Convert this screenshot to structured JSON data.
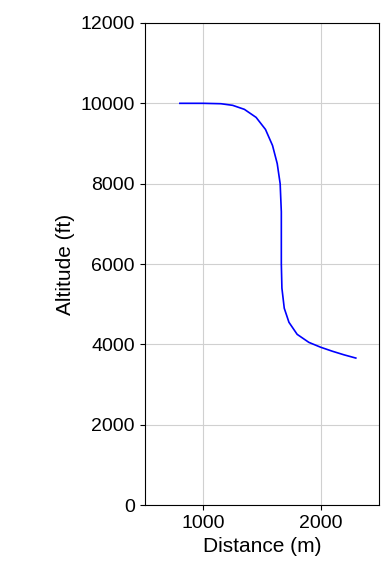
{
  "chart_data": {
    "type": "line",
    "x_label": "Distance (m)",
    "y_label": "Altitude (ft)",
    "x": [
      800,
      1000,
      1150,
      1250,
      1350,
      1450,
      1530,
      1590,
      1630,
      1655,
      1665,
      1665,
      1665,
      1670,
      1690,
      1730,
      1800,
      1900,
      2000,
      2100,
      2200,
      2300
    ],
    "series": [
      {
        "name": null,
        "color": "#0000ff",
        "values": [
          10000,
          10000,
          9990,
          9950,
          9850,
          9650,
          9350,
          8950,
          8500,
          8000,
          7300,
          6600,
          6000,
          5400,
          4900,
          4550,
          4250,
          4050,
          3930,
          3830,
          3740,
          3660
        ]
      }
    ],
    "xlim": [
      500,
      2500
    ],
    "xticks": [
      1000,
      2000
    ],
    "ylim": [
      0,
      12000
    ],
    "yticks": [
      0,
      2000,
      4000,
      6000,
      8000,
      10000,
      12000
    ],
    "grid": true
  }
}
